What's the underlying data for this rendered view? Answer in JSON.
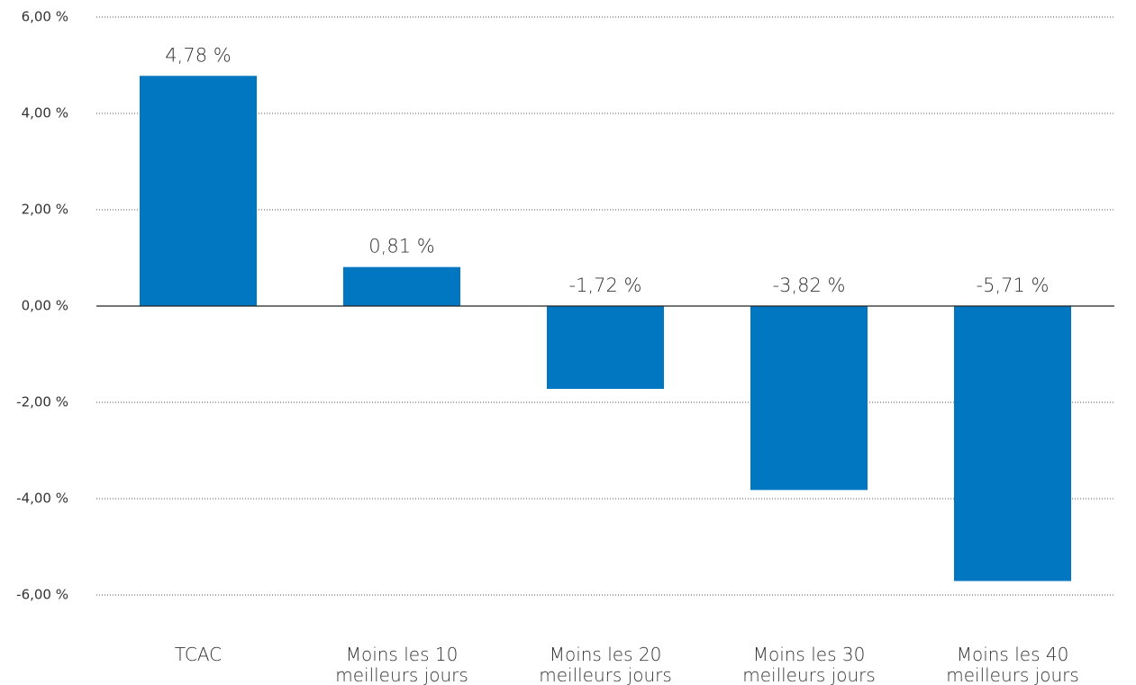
{
  "chart_data": {
    "type": "bar",
    "categories": [
      "TCAC",
      "Moins les 10\nmeilleurs jours",
      "Moins les 20\nmeilleurs jours",
      "Moins les 30\nmeilleurs jours",
      "Moins les 40\nmeilleurs jours"
    ],
    "values": [
      4.78,
      0.81,
      -1.72,
      -3.82,
      -5.71
    ],
    "value_labels": [
      "4,78 %",
      "0,81 %",
      "-1,72 %",
      "-3,82 %",
      "-5,71 %"
    ],
    "color": "#0077c0",
    "ylim": [
      -6,
      6
    ],
    "yticks": [
      {
        "value": -6,
        "label": "-6,00 %"
      },
      {
        "value": -4,
        "label": "-4,00 %"
      },
      {
        "value": -2,
        "label": "-2,00 %"
      },
      {
        "value": 0,
        "label": "0,00 %"
      },
      {
        "value": 2,
        "label": "2,00 %"
      },
      {
        "value": 4,
        "label": "4,00 %"
      },
      {
        "value": 6,
        "label": "6,00 %"
      }
    ],
    "grid": true
  }
}
